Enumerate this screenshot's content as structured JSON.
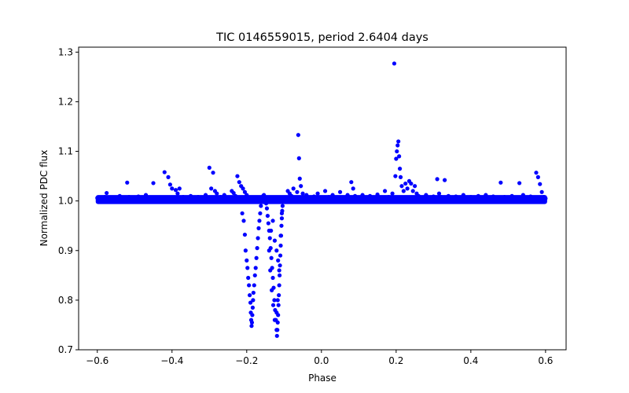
{
  "chart_data": {
    "type": "scatter",
    "title": "TIC 0146559015, period 2.6404 days",
    "xlabel": "Phase",
    "ylabel": "Normalized PDC flux",
    "xlim": [
      -0.65,
      0.655
    ],
    "ylim": [
      0.7,
      1.31
    ],
    "xticks": [
      -0.6,
      -0.4,
      -0.2,
      0.0,
      0.2,
      0.4,
      0.6
    ],
    "xtick_labels": [
      "−0.6",
      "−0.4",
      "−0.2",
      "0.0",
      "0.2",
      "0.4",
      "0.6"
    ],
    "yticks": [
      0.7,
      0.8,
      0.9,
      1.0,
      1.1,
      1.2,
      1.3
    ],
    "ytick_labels": [
      "0.7",
      "0.8",
      "0.9",
      "1.0",
      "1.1",
      "1.2",
      "1.3"
    ],
    "grid": false,
    "marker_color": "#0000ff",
    "points": [
      [
        -0.6,
        1.006
      ],
      [
        -0.59,
        1.004
      ],
      [
        -0.58,
        1.008
      ],
      [
        -0.575,
        1.016
      ],
      [
        -0.57,
        1.003
      ],
      [
        -0.56,
        1.007
      ],
      [
        -0.55,
        1.004
      ],
      [
        -0.54,
        1.01
      ],
      [
        -0.53,
        1.005
      ],
      [
        -0.52,
        1.037
      ],
      [
        -0.515,
        1.008
      ],
      [
        -0.5,
        1.005
      ],
      [
        -0.49,
        1.009
      ],
      [
        -0.48,
        1.004
      ],
      [
        -0.47,
        1.012
      ],
      [
        -0.46,
        1.006
      ],
      [
        -0.45,
        1.036
      ],
      [
        -0.44,
        1.007
      ],
      [
        -0.43,
        1.004
      ],
      [
        -0.42,
        1.058
      ],
      [
        -0.41,
        1.048
      ],
      [
        -0.405,
        1.033
      ],
      [
        -0.4,
        1.025
      ],
      [
        -0.39,
        1.022
      ],
      [
        -0.385,
        1.015
      ],
      [
        -0.38,
        1.025
      ],
      [
        -0.37,
        1.008
      ],
      [
        -0.36,
        1.005
      ],
      [
        -0.35,
        1.01
      ],
      [
        -0.34,
        1.004
      ],
      [
        -0.33,
        1.008
      ],
      [
        -0.32,
        1.006
      ],
      [
        -0.31,
        1.012
      ],
      [
        -0.3,
        1.067
      ],
      [
        -0.295,
        1.025
      ],
      [
        -0.29,
        1.057
      ],
      [
        -0.285,
        1.02
      ],
      [
        -0.28,
        1.015
      ],
      [
        -0.27,
        1.008
      ],
      [
        -0.26,
        1.012
      ],
      [
        -0.25,
        1.006
      ],
      [
        -0.24,
        1.02
      ],
      [
        -0.235,
        1.016
      ],
      [
        -0.23,
        1.01
      ],
      [
        -0.225,
        1.05
      ],
      [
        -0.22,
        1.038
      ],
      [
        -0.215,
        1.03
      ],
      [
        -0.21,
        1.025
      ],
      [
        -0.205,
        1.018
      ],
      [
        -0.2,
        1.012
      ],
      [
        -0.212,
        0.975
      ],
      [
        -0.208,
        0.96
      ],
      [
        -0.205,
        0.932
      ],
      [
        -0.203,
        0.9
      ],
      [
        -0.2,
        0.88
      ],
      [
        -0.198,
        0.865
      ],
      [
        -0.196,
        0.845
      ],
      [
        -0.194,
        0.83
      ],
      [
        -0.192,
        0.81
      ],
      [
        -0.19,
        0.795
      ],
      [
        -0.189,
        0.775
      ],
      [
        -0.188,
        0.76
      ],
      [
        -0.187,
        0.748
      ],
      [
        -0.186,
        0.755
      ],
      [
        -0.185,
        0.77
      ],
      [
        -0.184,
        0.785
      ],
      [
        -0.183,
        0.8
      ],
      [
        -0.182,
        0.815
      ],
      [
        -0.18,
        0.83
      ],
      [
        -0.178,
        0.85
      ],
      [
        -0.176,
        0.865
      ],
      [
        -0.174,
        0.885
      ],
      [
        -0.172,
        0.905
      ],
      [
        -0.17,
        0.925
      ],
      [
        -0.168,
        0.945
      ],
      [
        -0.166,
        0.96
      ],
      [
        -0.164,
        0.975
      ],
      [
        -0.162,
        0.99
      ],
      [
        -0.16,
        1.0
      ],
      [
        -0.158,
        1.008
      ],
      [
        -0.156,
        1.01
      ],
      [
        -0.154,
        1.012
      ],
      [
        -0.152,
        1.006
      ],
      [
        -0.15,
        1.003
      ],
      [
        -0.148,
        0.995
      ],
      [
        -0.146,
        0.985
      ],
      [
        -0.144,
        0.97
      ],
      [
        -0.142,
        0.955
      ],
      [
        -0.14,
        0.94
      ],
      [
        -0.138,
        0.925
      ],
      [
        -0.136,
        0.905
      ],
      [
        -0.134,
        0.885
      ],
      [
        -0.132,
        0.865
      ],
      [
        -0.13,
        0.845
      ],
      [
        -0.128,
        0.825
      ],
      [
        -0.126,
        0.8
      ],
      [
        -0.124,
        0.78
      ],
      [
        -0.122,
        0.76
      ],
      [
        -0.12,
        0.74
      ],
      [
        -0.119,
        0.728
      ],
      [
        -0.118,
        0.74
      ],
      [
        -0.117,
        0.755
      ],
      [
        -0.116,
        0.77
      ],
      [
        -0.115,
        0.79
      ],
      [
        -0.114,
        0.81
      ],
      [
        -0.113,
        0.83
      ],
      [
        -0.112,
        0.85
      ],
      [
        -0.111,
        0.87
      ],
      [
        -0.11,
        0.89
      ],
      [
        -0.109,
        0.91
      ],
      [
        -0.108,
        0.93
      ],
      [
        -0.107,
        0.95
      ],
      [
        -0.106,
        0.965
      ],
      [
        -0.105,
        0.98
      ],
      [
        -0.104,
        0.99
      ],
      [
        -0.103,
        0.998
      ],
      [
        -0.102,
        1.004
      ],
      [
        -0.1,
        1.006
      ],
      [
        -0.135,
        0.94
      ],
      [
        -0.13,
        0.96
      ],
      [
        -0.125,
        0.92
      ],
      [
        -0.12,
        0.9
      ],
      [
        -0.116,
        0.88
      ],
      [
        -0.14,
        0.9
      ],
      [
        -0.137,
        0.86
      ],
      [
        -0.133,
        0.82
      ],
      [
        -0.129,
        0.79
      ],
      [
        -0.125,
        0.76
      ],
      [
        -0.12,
        0.775
      ],
      [
        -0.117,
        0.8
      ],
      [
        -0.113,
        0.86
      ],
      [
        -0.109,
        0.93
      ],
      [
        -0.106,
        0.975
      ],
      [
        -0.09,
        1.02
      ],
      [
        -0.085,
        1.015
      ],
      [
        -0.08,
        1.01
      ],
      [
        -0.075,
        1.025
      ],
      [
        -0.07,
        1.005
      ],
      [
        -0.065,
        1.018
      ],
      [
        -0.062,
        1.133
      ],
      [
        -0.06,
        1.086
      ],
      [
        -0.058,
        1.045
      ],
      [
        -0.055,
        1.03
      ],
      [
        -0.05,
        1.015
      ],
      [
        -0.045,
        1.007
      ],
      [
        -0.04,
        1.012
      ],
      [
        -0.03,
        1.005
      ],
      [
        -0.02,
        1.009
      ],
      [
        -0.01,
        1.015
      ],
      [
        0.0,
        1.006
      ],
      [
        0.01,
        1.02
      ],
      [
        0.02,
        1.008
      ],
      [
        0.03,
        1.012
      ],
      [
        0.04,
        1.005
      ],
      [
        0.05,
        1.018
      ],
      [
        0.06,
        1.007
      ],
      [
        0.07,
        1.012
      ],
      [
        0.08,
        1.038
      ],
      [
        0.085,
        1.025
      ],
      [
        0.09,
        1.01
      ],
      [
        0.1,
        1.006
      ],
      [
        0.11,
        1.012
      ],
      [
        0.12,
        1.005
      ],
      [
        0.13,
        1.01
      ],
      [
        0.14,
        1.007
      ],
      [
        0.15,
        1.013
      ],
      [
        0.16,
        1.005
      ],
      [
        0.17,
        1.02
      ],
      [
        0.18,
        1.008
      ],
      [
        0.19,
        1.015
      ],
      [
        0.195,
        1.277
      ],
      [
        0.198,
        1.05
      ],
      [
        0.2,
        1.085
      ],
      [
        0.202,
        1.1
      ],
      [
        0.204,
        1.112
      ],
      [
        0.206,
        1.12
      ],
      [
        0.208,
        1.09
      ],
      [
        0.21,
        1.065
      ],
      [
        0.212,
        1.048
      ],
      [
        0.215,
        1.03
      ],
      [
        0.22,
        1.02
      ],
      [
        0.225,
        1.035
      ],
      [
        0.23,
        1.025
      ],
      [
        0.235,
        1.04
      ],
      [
        0.24,
        1.035
      ],
      [
        0.245,
        1.02
      ],
      [
        0.25,
        1.03
      ],
      [
        0.255,
        1.015
      ],
      [
        0.26,
        1.01
      ],
      [
        0.27,
        1.007
      ],
      [
        0.28,
        1.012
      ],
      [
        0.29,
        1.005
      ],
      [
        0.3,
        1.009
      ],
      [
        0.31,
        1.044
      ],
      [
        0.315,
        1.015
      ],
      [
        0.32,
        1.008
      ],
      [
        0.33,
        1.042
      ],
      [
        0.34,
        1.01
      ],
      [
        0.35,
        1.005
      ],
      [
        0.36,
        1.009
      ],
      [
        0.37,
        1.006
      ],
      [
        0.38,
        1.012
      ],
      [
        0.39,
        1.005
      ],
      [
        0.4,
        1.008
      ],
      [
        0.41,
        1.004
      ],
      [
        0.42,
        1.01
      ],
      [
        0.43,
        1.006
      ],
      [
        0.44,
        1.012
      ],
      [
        0.45,
        1.005
      ],
      [
        0.46,
        1.009
      ],
      [
        0.47,
        1.006
      ],
      [
        0.48,
        1.037
      ],
      [
        0.49,
        1.008
      ],
      [
        0.5,
        1.005
      ],
      [
        0.51,
        1.01
      ],
      [
        0.52,
        1.004
      ],
      [
        0.53,
        1.036
      ],
      [
        0.54,
        1.012
      ],
      [
        0.55,
        1.006
      ],
      [
        0.56,
        1.009
      ],
      [
        0.57,
        1.005
      ],
      [
        0.575,
        1.057
      ],
      [
        0.58,
        1.048
      ],
      [
        0.585,
        1.034
      ],
      [
        0.59,
        1.018
      ],
      [
        0.595,
        1.008
      ],
      [
        0.6,
        1.005
      ]
    ]
  }
}
